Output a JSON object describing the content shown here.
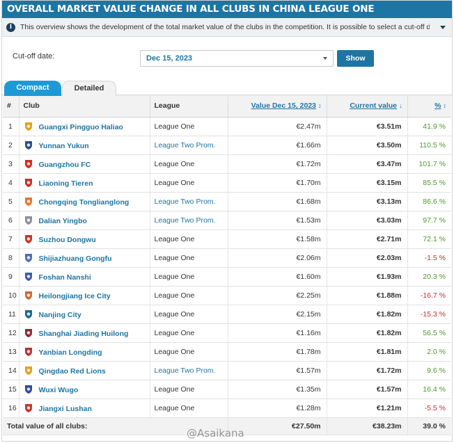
{
  "header": {
    "title": "OVERALL MARKET VALUE CHANGE IN ALL CLUBS IN CHINA LEAGUE ONE"
  },
  "info": {
    "text": "This overview shows the development of the total market value of the clubs in the competition. It is possible to select a cut-off date to compa..."
  },
  "cutoff": {
    "label": "Cut-off date:",
    "selected": "Dec 15, 2023",
    "show_label": "Show"
  },
  "tabs": {
    "compact": "Compact",
    "detailed": "Detailed"
  },
  "columns": {
    "num": "#",
    "club": "Club",
    "league": "League",
    "value": "Value Dec 15, 2023",
    "current": "Current value",
    "pct": "%"
  },
  "sort_arrows": {
    "value": "↕",
    "current": "↓",
    "pct": "↕"
  },
  "rows": [
    {
      "num": "1",
      "club": "Guangxi Pingguo Haliao",
      "league": "League One",
      "value": "€2.47m",
      "current": "€3.51m",
      "pct": "41.9 %",
      "crest": "#e0a21c"
    },
    {
      "num": "2",
      "club": "Yunnan Yukun",
      "league": "League Two Prom.",
      "value": "€1.66m",
      "current": "€3.50m",
      "pct": "110.5 %",
      "crest": "#2a4e8f"
    },
    {
      "num": "3",
      "club": "Guangzhou FC",
      "league": "League One",
      "value": "€1.72m",
      "current": "€3.47m",
      "pct": "101.7 %",
      "crest": "#d42a1f"
    },
    {
      "num": "4",
      "club": "Liaoning Tieren",
      "league": "League One",
      "value": "€1.70m",
      "current": "€3.15m",
      "pct": "85.5 %",
      "crest": "#c8302c"
    },
    {
      "num": "5",
      "club": "Chongqing Tonglianglong",
      "league": "League Two Prom.",
      "value": "€1.68m",
      "current": "€3.13m",
      "pct": "86.6 %",
      "crest": "#e7762a"
    },
    {
      "num": "6",
      "club": "Dalian Yingbo",
      "league": "League Two Prom.",
      "value": "€1.53m",
      "current": "€3.03m",
      "pct": "97.7 %",
      "crest": "#8a8fa0"
    },
    {
      "num": "7",
      "club": "Suzhou Dongwu",
      "league": "League One",
      "value": "€1.58m",
      "current": "€2.71m",
      "pct": "72.1 %",
      "crest": "#c43a2b"
    },
    {
      "num": "8",
      "club": "Shijiazhuang Gongfu",
      "league": "League One",
      "value": "€2.06m",
      "current": "€2.03m",
      "pct": "-1.5 %",
      "crest": "#4d6fb0"
    },
    {
      "num": "9",
      "club": "Foshan Nanshi",
      "league": "League One",
      "value": "€1.60m",
      "current": "€1.93m",
      "pct": "20.3 %",
      "crest": "#3c5ea8"
    },
    {
      "num": "10",
      "club": "Heilongjiang Ice City",
      "league": "League One",
      "value": "€2.25m",
      "current": "€1.88m",
      "pct": "-16.7 %",
      "crest": "#c96b3a"
    },
    {
      "num": "11",
      "club": "Nanjing City",
      "league": "League One",
      "value": "€2.15m",
      "current": "€1.82m",
      "pct": "-15.3 %",
      "crest": "#1f6a8f"
    },
    {
      "num": "12",
      "club": "Shanghai Jiading Huilong",
      "league": "League One",
      "value": "€1.16m",
      "current": "€1.82m",
      "pct": "56.5 %",
      "crest": "#8c2b36"
    },
    {
      "num": "13",
      "club": "Yanbian Longding",
      "league": "League One",
      "value": "€1.78m",
      "current": "€1.81m",
      "pct": "2.0 %",
      "crest": "#b3343a"
    },
    {
      "num": "14",
      "club": "Qingdao Red Lions",
      "league": "League Two Prom.",
      "value": "€1.57m",
      "current": "€1.72m",
      "pct": "9.6 %",
      "crest": "#e2a020"
    },
    {
      "num": "15",
      "club": "Wuxi Wugo",
      "league": "League One",
      "value": "€1.35m",
      "current": "€1.57m",
      "pct": "16.4 %",
      "crest": "#2f4a9c"
    },
    {
      "num": "16",
      "club": "Jiangxi Lushan",
      "league": "League One",
      "value": "€1.28m",
      "current": "€1.21m",
      "pct": "-5.5 %",
      "crest": "#c9342e"
    }
  ],
  "total": {
    "label": "Total value of all clubs:",
    "value": "€27.50m",
    "current": "€38.23m",
    "pct": "39.0 %"
  },
  "watermark": "@Asaikana"
}
